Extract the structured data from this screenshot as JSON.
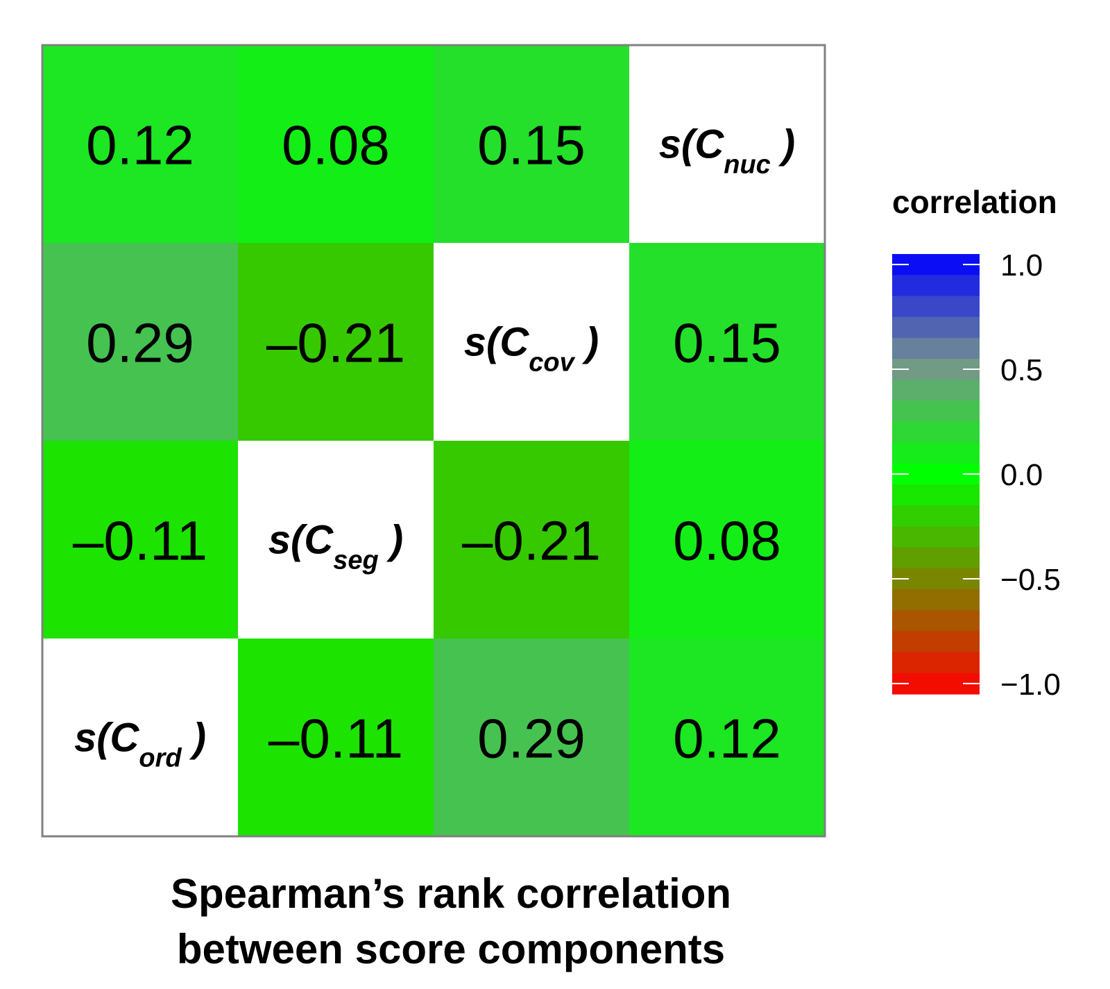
{
  "chart_data": {
    "type": "heatmap",
    "title": "Spearman’s rank correlation between score components",
    "title_lines": [
      "Spearman’s rank correlation",
      "between score components"
    ],
    "variables": [
      {
        "main": "s(C",
        "sub": "ord",
        "close": " )"
      },
      {
        "main": "s(C",
        "sub": "seg",
        "close": " )"
      },
      {
        "main": "s(C",
        "sub": "cov",
        "close": " )"
      },
      {
        "main": "s(C",
        "sub": "nuc",
        "close": " )"
      }
    ],
    "matrix": [
      [
        0.12,
        0.08,
        0.15,
        null
      ],
      [
        0.29,
        -0.21,
        null,
        0.15
      ],
      [
        -0.11,
        null,
        -0.21,
        0.08
      ],
      [
        null,
        -0.11,
        0.29,
        0.12
      ]
    ],
    "cell_labels": [
      [
        "0.12",
        "0.08",
        "0.15",
        ""
      ],
      [
        "0.29",
        "–0.21",
        "",
        "0.15"
      ],
      [
        "–0.11",
        "",
        "–0.21",
        "0.08"
      ],
      [
        "",
        "–0.11",
        "0.29",
        "0.12"
      ]
    ],
    "legend": {
      "title": "correlation",
      "ticks": [
        1.0,
        0.5,
        0.0,
        -0.5,
        -1.0
      ],
      "tick_labels": [
        "1.0",
        "0.5",
        "0.0",
        "−0.5",
        "−1.0"
      ],
      "range": [
        -1,
        1
      ],
      "position": "right"
    },
    "colors": {
      "negative_end": "#ff0000",
      "zero": "#00ff00",
      "positive_end": "#0000ff",
      "diagonal": "#ffffff",
      "border": "#808080"
    }
  }
}
